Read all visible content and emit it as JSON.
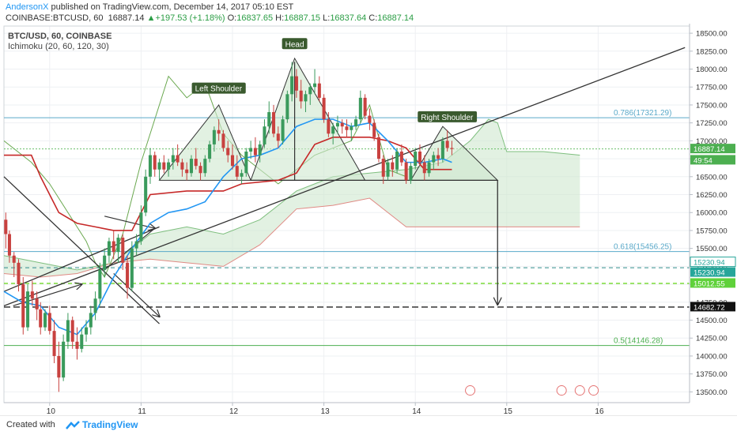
{
  "header": {
    "author": "AndersonX",
    "published_text": "published on TradingView.com, December 14, 2017 05:10 EST",
    "symbol": "COINBASE:BTCUSD, 60",
    "last": "16887.14",
    "change_arrow": "▲",
    "change": "+197.53 (+1.18%)",
    "o_label": "O:",
    "o_val": "16837.65",
    "h_label": "H:",
    "h_val": "16887.15",
    "l_label": "L:",
    "l_val": "16837.64",
    "c_label": "C:",
    "c_val": "16887.14"
  },
  "legend": {
    "line1": "BTC/USD, 60, COINBASE",
    "line2": "Ichimoku (20, 60, 120, 30)"
  },
  "footer": {
    "created": "Created with",
    "brand": "TradingView"
  },
  "colors": {
    "up_candle": "#3a9a5c",
    "down_candle": "#c8413f",
    "cloud_green": "#cfe8cf",
    "cloud_red": "#f6cfcc",
    "tenkan": "#2196f3",
    "kijun": "#c62828",
    "chikou": "#6aa84f",
    "fib": "#5aa9c9",
    "green_line": "#4caf50"
  },
  "chart_data": {
    "type": "candlestick",
    "ylim": [
      13350,
      18600
    ],
    "y_ticks": [
      13500,
      13750,
      14000,
      14250,
      14500,
      14750,
      15000,
      15250,
      15500,
      15750,
      16000,
      16250,
      16500,
      16750,
      17000,
      17250,
      17500,
      17750,
      18000,
      18250,
      18500
    ],
    "y_tick_labels": [
      "13500.00",
      "13750.00",
      "14000.00",
      "14250.00",
      "14500.00",
      "14750.00",
      "15000.00",
      "15250.00",
      "15500.00",
      "15750.00",
      "16000.00",
      "16250.00",
      "16500.00",
      "16750.00",
      "17000.00",
      "17250.00",
      "17500.00",
      "17750.00",
      "18000.00",
      "18250.00",
      "18500.00"
    ],
    "x_ticks": [
      10,
      11,
      12,
      13,
      14,
      15,
      16
    ],
    "x_tick_labels": [
      "10",
      "11",
      "12",
      "13",
      "14",
      "15",
      "16"
    ],
    "xlim": [
      9.5,
      17.0
    ],
    "annotations": [
      "Left Shoulder",
      "Head",
      "Right Shoulder"
    ],
    "fib_levels": [
      {
        "label": "0.786(17321.29)",
        "value": 17321.29
      },
      {
        "label": "0.618(15456.25)",
        "value": 15456.25
      },
      {
        "label": "0.5(14146.28)",
        "value": 14146.28
      }
    ],
    "price_labels": [
      {
        "value": 16887.14,
        "text": "16887.14",
        "style": "green"
      },
      {
        "value": 16730,
        "text": "49:54",
        "style": "green"
      },
      {
        "value": 15230.94,
        "text": "15230.94",
        "style": "teal"
      },
      {
        "value": 15230.94,
        "text": "15230.94",
        "style": "teal2"
      },
      {
        "value": 15012.55,
        "text": "15012.55",
        "style": "lime"
      },
      {
        "value": 14682.72,
        "text": "14682.72",
        "style": "black"
      }
    ],
    "candles": [
      [
        9.52,
        15900,
        16000,
        15500,
        15700
      ],
      [
        9.56,
        15700,
        15750,
        15300,
        15400
      ],
      [
        9.61,
        15400,
        15450,
        15100,
        15300
      ],
      [
        9.66,
        15300,
        15350,
        14900,
        15000
      ],
      [
        9.71,
        15000,
        15100,
        14300,
        14400
      ],
      [
        9.76,
        14400,
        15000,
        14350,
        14900
      ],
      [
        9.81,
        14900,
        15050,
        14700,
        14800
      ],
      [
        9.86,
        14800,
        14900,
        14500,
        14650
      ],
      [
        9.9,
        14650,
        14750,
        14300,
        14400
      ],
      [
        9.95,
        14400,
        14650,
        14350,
        14600
      ],
      [
        10.0,
        14600,
        14700,
        14300,
        14350
      ],
      [
        10.05,
        14350,
        14500,
        13900,
        14000
      ],
      [
        10.1,
        14000,
        14200,
        13500,
        13700
      ],
      [
        10.15,
        13700,
        14300,
        13650,
        14200
      ],
      [
        10.2,
        14200,
        14600,
        14100,
        14500
      ],
      [
        10.25,
        14500,
        14550,
        14100,
        14200
      ],
      [
        10.3,
        14200,
        14400,
        13950,
        14100
      ],
      [
        10.35,
        14100,
        14400,
        14050,
        14300
      ],
      [
        10.4,
        14300,
        14500,
        14200,
        14400
      ],
      [
        10.45,
        14400,
        14700,
        14300,
        14600
      ],
      [
        10.5,
        14600,
        14900,
        14500,
        14800
      ],
      [
        10.55,
        14800,
        15300,
        14700,
        15200
      ],
      [
        10.6,
        15200,
        15500,
        15100,
        15400
      ],
      [
        10.65,
        15400,
        15650,
        15300,
        15600
      ],
      [
        10.7,
        15600,
        15750,
        15350,
        15450
      ],
      [
        10.75,
        15450,
        15700,
        15300,
        15650
      ],
      [
        10.8,
        15650,
        15700,
        15200,
        15300
      ],
      [
        10.85,
        15300,
        15400,
        14800,
        14950
      ],
      [
        10.9,
        14950,
        15600,
        14900,
        15500
      ],
      [
        10.95,
        15500,
        15700,
        15400,
        15600
      ],
      [
        11.0,
        15600,
        16100,
        15550,
        16000
      ],
      [
        11.05,
        16000,
        16600,
        15950,
        16500
      ],
      [
        11.1,
        16500,
        16900,
        16400,
        16800
      ],
      [
        11.15,
        16800,
        16850,
        16500,
        16600
      ],
      [
        11.2,
        16600,
        16750,
        16450,
        16700
      ],
      [
        11.25,
        16700,
        16800,
        16550,
        16600
      ],
      [
        11.3,
        16600,
        16750,
        16500,
        16700
      ],
      [
        11.35,
        16700,
        16900,
        16600,
        16800
      ],
      [
        11.4,
        16800,
        16950,
        16650,
        16700
      ],
      [
        11.45,
        16700,
        16750,
        16500,
        16600
      ],
      [
        11.5,
        16600,
        16700,
        16450,
        16550
      ],
      [
        11.55,
        16550,
        16800,
        16500,
        16750
      ],
      [
        11.6,
        16750,
        16900,
        16600,
        16650
      ],
      [
        11.65,
        16650,
        16700,
        16450,
        16550
      ],
      [
        11.7,
        16550,
        16800,
        16500,
        16750
      ],
      [
        11.75,
        16750,
        17000,
        16700,
        16950
      ],
      [
        11.8,
        16950,
        17200,
        16850,
        17150
      ],
      [
        11.85,
        17150,
        17300,
        17000,
        17100
      ],
      [
        11.9,
        17100,
        17150,
        16850,
        16900
      ],
      [
        11.95,
        16900,
        17000,
        16700,
        16800
      ],
      [
        12.0,
        16800,
        16950,
        16600,
        16650
      ],
      [
        12.05,
        16650,
        16800,
        16450,
        16500
      ],
      [
        12.1,
        16500,
        16600,
        16400,
        16550
      ],
      [
        12.15,
        16550,
        16900,
        16500,
        16850
      ],
      [
        12.2,
        16850,
        17000,
        16750,
        16900
      ],
      [
        12.25,
        16900,
        17050,
        16700,
        16800
      ],
      [
        12.3,
        16800,
        17000,
        16700,
        16950
      ],
      [
        12.35,
        16950,
        17300,
        16900,
        17200
      ],
      [
        12.4,
        17200,
        17550,
        17100,
        17400
      ],
      [
        12.45,
        17400,
        17500,
        17050,
        17100
      ],
      [
        12.5,
        17100,
        17200,
        16900,
        17000
      ],
      [
        12.55,
        17000,
        17350,
        16950,
        17300
      ],
      [
        12.6,
        17300,
        17700,
        17250,
        17650
      ],
      [
        12.65,
        17650,
        18100,
        17550,
        17900
      ],
      [
        12.7,
        17900,
        18000,
        17600,
        17700
      ],
      [
        12.75,
        17700,
        17850,
        17450,
        17550
      ],
      [
        12.8,
        17550,
        17700,
        17400,
        17650
      ],
      [
        12.85,
        17650,
        17800,
        17500,
        17750
      ],
      [
        12.9,
        17750,
        18000,
        17650,
        17800
      ],
      [
        12.95,
        17800,
        17900,
        17550,
        17600
      ],
      [
        13.0,
        17600,
        17650,
        17250,
        17300
      ],
      [
        13.05,
        17300,
        17400,
        17050,
        17100
      ],
      [
        13.1,
        17100,
        17250,
        16950,
        17200
      ],
      [
        13.15,
        17200,
        17350,
        17100,
        17250
      ],
      [
        13.2,
        17250,
        17300,
        17100,
        17200
      ],
      [
        13.25,
        17200,
        17300,
        17050,
        17150
      ],
      [
        13.3,
        17150,
        17250,
        17000,
        17200
      ],
      [
        13.35,
        17200,
        17350,
        17150,
        17300
      ],
      [
        13.4,
        17300,
        17700,
        17250,
        17600
      ],
      [
        13.45,
        17600,
        17650,
        17300,
        17350
      ],
      [
        13.5,
        17350,
        17450,
        17150,
        17250
      ],
      [
        13.55,
        17250,
        17300,
        17000,
        17050
      ],
      [
        13.6,
        17050,
        17100,
        16700,
        16750
      ],
      [
        13.65,
        16750,
        16800,
        16400,
        16500
      ],
      [
        13.7,
        16500,
        16750,
        16450,
        16700
      ],
      [
        13.75,
        16700,
        16800,
        16500,
        16600
      ],
      [
        13.8,
        16600,
        16900,
        16550,
        16850
      ],
      [
        13.85,
        16850,
        16950,
        16650,
        16700
      ],
      [
        13.9,
        16700,
        16750,
        16400,
        16450
      ],
      [
        13.95,
        16450,
        16700,
        16400,
        16650
      ],
      [
        14.0,
        16650,
        16900,
        16600,
        16850
      ],
      [
        14.05,
        16850,
        16950,
        16650,
        16700
      ],
      [
        14.1,
        16700,
        16800,
        16450,
        16550
      ],
      [
        14.15,
        16550,
        16750,
        16500,
        16700
      ],
      [
        14.2,
        16700,
        16850,
        16600,
        16800
      ],
      [
        14.25,
        16800,
        16900,
        16650,
        16750
      ],
      [
        14.3,
        16750,
        17050,
        16700,
        17000
      ],
      [
        14.35,
        17000,
        17150,
        16850,
        16900
      ],
      [
        14.4,
        16900,
        17000,
        16800,
        16887
      ]
    ],
    "tenkan": [
      [
        9.5,
        14900
      ],
      [
        9.7,
        14750
      ],
      [
        9.9,
        14700
      ],
      [
        10.1,
        14400
      ],
      [
        10.3,
        14300
      ],
      [
        10.5,
        14600
      ],
      [
        10.7,
        15100
      ],
      [
        10.9,
        15500
      ],
      [
        11.1,
        15850
      ],
      [
        11.3,
        16000
      ],
      [
        11.5,
        16050
      ],
      [
        11.7,
        16150
      ],
      [
        11.9,
        16500
      ],
      [
        12.1,
        16750
      ],
      [
        12.3,
        16800
      ],
      [
        12.5,
        16900
      ],
      [
        12.7,
        17200
      ],
      [
        12.9,
        17300
      ],
      [
        13.1,
        17300
      ],
      [
        13.3,
        17200
      ],
      [
        13.5,
        17250
      ],
      [
        13.7,
        17000
      ],
      [
        13.9,
        16700
      ],
      [
        14.1,
        16700
      ],
      [
        14.3,
        16750
      ],
      [
        14.4,
        16700
      ]
    ],
    "kijun": [
      [
        9.5,
        16800
      ],
      [
        9.8,
        16800
      ],
      [
        9.9,
        16500
      ],
      [
        10.1,
        16000
      ],
      [
        10.3,
        15850
      ],
      [
        10.5,
        15800
      ],
      [
        10.7,
        15750
      ],
      [
        10.9,
        15750
      ],
      [
        11.1,
        16250
      ],
      [
        11.5,
        16300
      ],
      [
        11.9,
        16300
      ],
      [
        12.1,
        16400
      ],
      [
        12.5,
        16450
      ],
      [
        12.7,
        16550
      ],
      [
        12.9,
        16950
      ],
      [
        13.1,
        17050
      ],
      [
        13.5,
        17050
      ],
      [
        13.7,
        17000
      ],
      [
        13.9,
        16900
      ],
      [
        14.1,
        16600
      ],
      [
        14.4,
        16600
      ]
    ],
    "span_a": [
      [
        9.5,
        15400
      ],
      [
        9.9,
        15300
      ],
      [
        10.3,
        15200
      ],
      [
        10.7,
        15300
      ],
      [
        11.1,
        15700
      ],
      [
        11.5,
        15800
      ],
      [
        11.9,
        15700
      ],
      [
        12.3,
        15900
      ],
      [
        12.7,
        16300
      ],
      [
        13.1,
        16500
      ],
      [
        13.5,
        16550
      ],
      [
        13.9,
        16600
      ],
      [
        14.3,
        16700
      ],
      [
        14.6,
        17000
      ],
      [
        14.8,
        17300
      ],
      [
        14.9,
        17250
      ],
      [
        15.0,
        16850
      ],
      [
        15.4,
        16850
      ],
      [
        15.8,
        16800
      ]
    ],
    "span_b": [
      [
        9.5,
        15150
      ],
      [
        9.9,
        15100
      ],
      [
        10.3,
        15150
      ],
      [
        10.7,
        15300
      ],
      [
        11.1,
        15350
      ],
      [
        11.5,
        15300
      ],
      [
        11.9,
        15250
      ],
      [
        12.3,
        15550
      ],
      [
        12.7,
        16050
      ],
      [
        13.1,
        16100
      ],
      [
        13.5,
        16200
      ],
      [
        13.9,
        15800
      ],
      [
        14.3,
        15800
      ],
      [
        14.8,
        15800
      ],
      [
        15.4,
        15800
      ],
      [
        15.8,
        15800
      ]
    ],
    "chikou": [
      [
        9.5,
        17000
      ],
      [
        9.8,
        16700
      ],
      [
        10.0,
        16400
      ],
      [
        10.2,
        16000
      ],
      [
        10.4,
        15600
      ],
      [
        10.5,
        15300
      ],
      [
        10.6,
        15100
      ],
      [
        10.8,
        15700
      ],
      [
        11.0,
        16700
      ],
      [
        11.3,
        17900
      ],
      [
        11.5,
        17600
      ],
      [
        11.7,
        17800
      ],
      [
        11.9,
        17100
      ],
      [
        12.1,
        16800
      ],
      [
        12.3,
        16600
      ],
      [
        12.5,
        16400
      ],
      [
        12.7,
        16600
      ],
      [
        12.9,
        16800
      ],
      [
        13.1,
        16900
      ],
      [
        13.3,
        17000
      ],
      [
        13.5,
        17500
      ],
      [
        13.7,
        16600
      ],
      [
        13.9,
        16500
      ]
    ],
    "neckline_y": 16450
  }
}
